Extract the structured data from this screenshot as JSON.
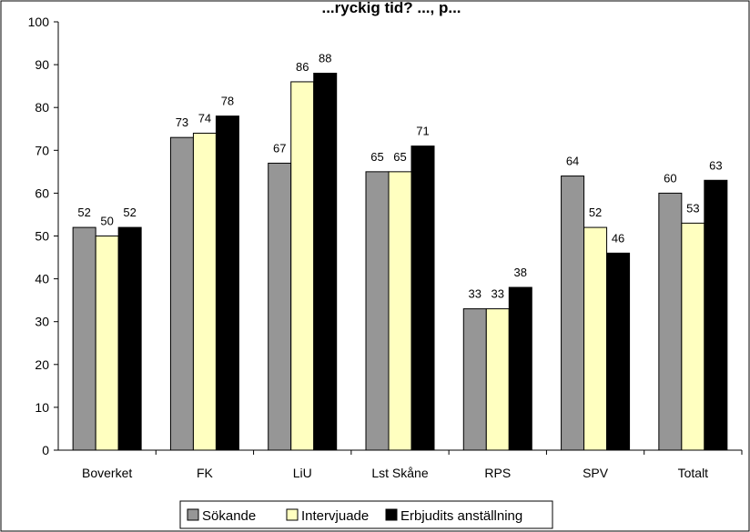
{
  "chart_data": {
    "type": "bar",
    "title": "...ryckig tid? ..., p...",
    "xlabel": "",
    "ylabel": "",
    "ylim": [
      0,
      100
    ],
    "yticks": [
      0,
      10,
      20,
      30,
      40,
      50,
      60,
      70,
      80,
      90,
      100
    ],
    "grid": false,
    "legend_position": "bottom",
    "categories": [
      "Boverket",
      "FK",
      "LiU",
      "Lst Skåne",
      "RPS",
      "SPV",
      "Totalt"
    ],
    "series": [
      {
        "name": "Sökande",
        "color": "#969696",
        "values": [
          52,
          73,
          67,
          65,
          33,
          64,
          60
        ]
      },
      {
        "name": "Intervjuade",
        "color": "#ffffc0",
        "values": [
          50,
          74,
          86,
          65,
          33,
          52,
          53
        ]
      },
      {
        "name": "Erbjudits anställning",
        "color": "#000000",
        "values": [
          52,
          78,
          88,
          71,
          38,
          46,
          63
        ]
      }
    ]
  }
}
